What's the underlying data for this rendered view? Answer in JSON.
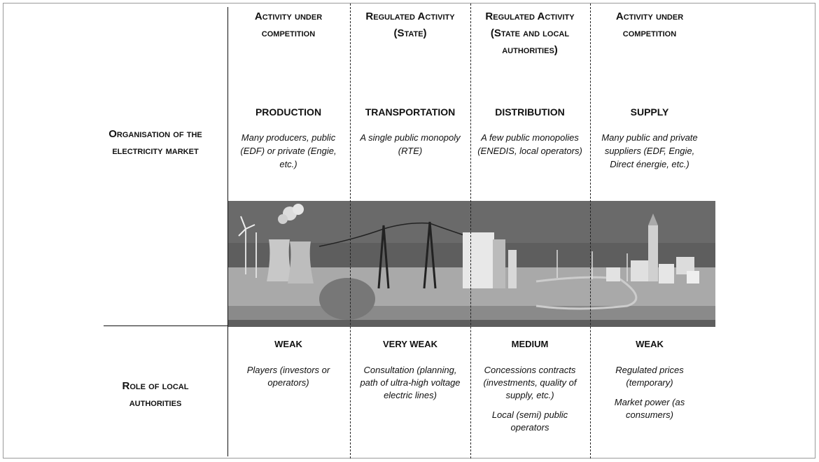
{
  "row_labels": {
    "organisation": "Organisation of the electricity market",
    "role": "Role of local authorities"
  },
  "columns": [
    {
      "header": "Activity under competition",
      "sector": "PRODUCTION",
      "organisation": "Many producers, public (EDF) or private (Engie, etc.)",
      "role_level": "WEAK",
      "role": [
        "Players (investors or operators)"
      ]
    },
    {
      "header": "Regulated Activity (State)",
      "sector": "TRANSPORTATION",
      "organisation": "A single public monopoly (RTE)",
      "role_level": "VERY WEAK",
      "role": [
        "Consultation (planning, path of ultra-high voltage electric lines)"
      ]
    },
    {
      "header": "Regulated Activity (State and local authorities)",
      "sector": "DISTRIBUTION",
      "organisation": "A few public monopolies (ENEDIS, local operators)",
      "role_level": "MEDIUM",
      "role": [
        "Concessions contracts (investments, quality of supply, etc.)",
        "Local (semi) public operators"
      ]
    },
    {
      "header": "Activity under competition",
      "sector": "SUPPLY",
      "organisation": "Many public and private suppliers (EDF, Engie, Direct énergie, etc.)",
      "role_level": "WEAK",
      "role": [
        "Regulated prices (temporary)",
        "Market power (as consumers)"
      ]
    }
  ]
}
